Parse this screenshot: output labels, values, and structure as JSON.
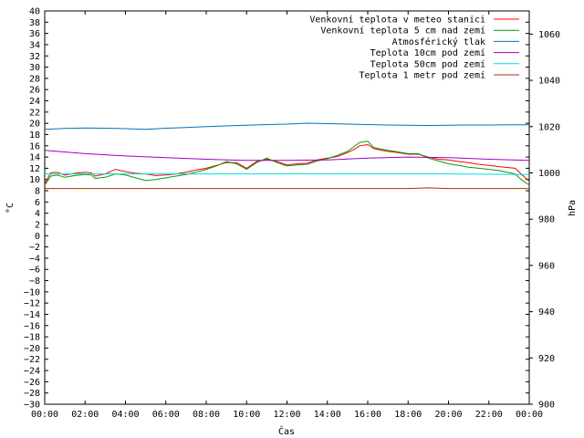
{
  "chart_data": {
    "type": "line",
    "xlabel": "Čas",
    "ylabel": "°C",
    "y2label": "hPa",
    "xticks": [
      "00:00",
      "02:00",
      "04:00",
      "06:00",
      "08:00",
      "10:00",
      "12:00",
      "14:00",
      "16:00",
      "18:00",
      "20:00",
      "22:00",
      "00:00"
    ],
    "xlim": [
      0,
      24
    ],
    "ylim": [
      -30,
      40
    ],
    "y2lim": [
      900,
      1070
    ],
    "y2ticks": [
      900,
      920,
      940,
      960,
      980,
      1000,
      1020,
      1040,
      1060
    ],
    "grid": false,
    "legend_position": "top-right",
    "series": [
      {
        "name": "Venkovní teplota v meteo stanici",
        "axis": "left",
        "color": "#ff0000",
        "x": [
          0,
          0.3,
          0.6,
          1,
          1.5,
          2,
          2.3,
          2.5,
          3,
          3.5,
          4,
          4.5,
          5,
          5.5,
          6,
          6.5,
          7,
          7.5,
          8,
          8.5,
          9,
          9.5,
          10,
          10.5,
          11,
          11.5,
          12,
          12.5,
          13,
          13.5,
          14,
          14.5,
          15,
          15.3,
          15.6,
          16,
          16.3,
          16.7,
          17,
          17.5,
          18,
          18.5,
          19,
          19.5,
          20,
          20.5,
          21,
          21.5,
          22,
          22.5,
          23,
          23.3,
          23.6,
          24
        ],
        "y": [
          9.2,
          11.2,
          11.3,
          10.8,
          11.1,
          11.3,
          11.2,
          10.6,
          11.0,
          11.8,
          11.4,
          11.1,
          11.0,
          10.7,
          10.8,
          11.0,
          11.3,
          11.7,
          12.0,
          12.5,
          13.0,
          13.0,
          12.0,
          13.2,
          13.6,
          13.2,
          12.6,
          12.8,
          12.9,
          13.5,
          13.8,
          14.1,
          14.8,
          15.3,
          16.0,
          16.2,
          15.5,
          15.2,
          15.0,
          14.8,
          14.5,
          14.5,
          14.0,
          13.6,
          13.5,
          13.2,
          13.0,
          12.7,
          12.5,
          12.3,
          12.1,
          12.0,
          11.0,
          9.7
        ]
      },
      {
        "name": "Venkovní teplota 5 cm nad zemí",
        "axis": "left",
        "color": "#00a000",
        "x": [
          0,
          0.3,
          0.6,
          1,
          1.5,
          2,
          2.3,
          2.5,
          3,
          3.5,
          4,
          4.5,
          5,
          5.5,
          6,
          6.5,
          7,
          7.5,
          8,
          8.5,
          9,
          9.5,
          10,
          10.5,
          11,
          11.5,
          12,
          12.5,
          13,
          13.5,
          14,
          14.5,
          15,
          15.3,
          15.6,
          16,
          16.3,
          16.7,
          17,
          17.5,
          18,
          18.5,
          19,
          19.5,
          20,
          20.5,
          21,
          21.5,
          22,
          22.5,
          23,
          23.3,
          23.6,
          24
        ],
        "y": [
          9.0,
          10.6,
          10.8,
          10.4,
          10.7,
          10.9,
          10.8,
          10.2,
          10.4,
          11.0,
          10.8,
          10.3,
          9.8,
          10.0,
          10.3,
          10.6,
          10.9,
          11.3,
          11.8,
          12.4,
          13.2,
          12.8,
          11.8,
          13.0,
          13.8,
          13.0,
          12.4,
          12.6,
          12.7,
          13.3,
          13.7,
          14.3,
          15.0,
          15.8,
          16.6,
          16.8,
          15.7,
          15.4,
          15.2,
          14.9,
          14.6,
          14.6,
          13.8,
          13.3,
          12.8,
          12.5,
          12.2,
          12.0,
          11.8,
          11.6,
          11.2,
          11.0,
          10.0,
          9.0
        ]
      },
      {
        "name": "Atmosférický tlak",
        "axis": "right",
        "color": "#0070c0",
        "x": [
          0,
          1,
          2,
          3,
          4,
          5,
          6,
          7,
          8,
          9,
          10,
          11,
          12,
          13,
          14,
          15,
          16,
          17,
          18,
          19,
          20,
          21,
          22,
          23,
          24
        ],
        "y": [
          1018.8,
          1019.2,
          1019.4,
          1019.3,
          1019.1,
          1018.8,
          1019.3,
          1019.6,
          1020.0,
          1020.3,
          1020.6,
          1020.9,
          1021.1,
          1021.5,
          1021.3,
          1021.1,
          1020.9,
          1020.7,
          1020.6,
          1020.5,
          1020.6,
          1020.7,
          1020.7,
          1020.8,
          1020.8
        ]
      },
      {
        "name": "Teplota 10cm pod zemí",
        "axis": "left",
        "color": "#a000c0",
        "x": [
          0,
          2,
          4,
          6,
          8,
          10,
          12,
          14,
          16,
          18,
          20,
          22,
          24
        ],
        "y": [
          15.2,
          14.6,
          14.2,
          13.9,
          13.6,
          13.4,
          13.4,
          13.5,
          13.8,
          14.0,
          13.9,
          13.6,
          13.4
        ]
      },
      {
        "name": "Teplota 50cm pod zemí",
        "axis": "left",
        "color": "#00e0e0",
        "x": [
          0,
          4,
          8,
          12,
          16,
          20,
          24
        ],
        "y": [
          11.0,
          11.0,
          11.0,
          11.0,
          11.0,
          11.0,
          10.9
        ]
      },
      {
        "name": "Teplota 1 metr pod zemí",
        "axis": "left",
        "color": "#b03000",
        "x": [
          0,
          6,
          12,
          18,
          19,
          20,
          24
        ],
        "y": [
          8.4,
          8.4,
          8.4,
          8.4,
          8.5,
          8.4,
          8.4
        ]
      }
    ]
  }
}
